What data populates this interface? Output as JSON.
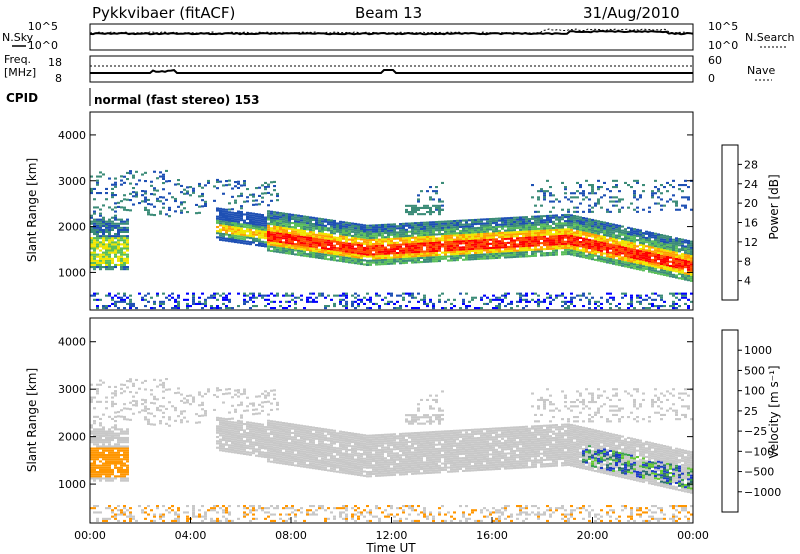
{
  "header": {
    "station": "Pykkvibaer (fitACF)",
    "beam": "Beam 13",
    "date": "31/Aug/2010"
  },
  "noise_panel": {
    "left_label": "N.Sky",
    "right_label": "N.Search",
    "left_ticks": [
      "10^5",
      "10^0"
    ],
    "right_ticks": [
      "10^5",
      "10^0"
    ]
  },
  "freq_panel": {
    "left_label": "Freq.",
    "left_unit": "[MHz]",
    "right_label": "Nave",
    "left_ticks": [
      "18",
      "8"
    ],
    "right_ticks": [
      "60",
      "0"
    ]
  },
  "cpid": {
    "label": "CPID",
    "text": "normal (fast stereo) 153"
  },
  "colors": {
    "scale": [
      "#0000ff",
      "#1e50b4",
      "#3c8c78",
      "#5abe5a",
      "#f0e600",
      "#ffa000",
      "#ff5000",
      "#ff0000"
    ],
    "velocity_scale": [
      "#1e3cc8",
      "#2d6e6e",
      "#3ca050",
      "#64c832",
      "#c8c8c8",
      "#c8c8c8",
      "#ff9600",
      "#ff6400",
      "#ff0000"
    ],
    "ground_scatter": "#c8c8c8"
  },
  "chart_data": [
    {
      "type": "heatmap",
      "title": "",
      "ylabel": "Slant Range [km]",
      "ylim": [
        180,
        4500
      ],
      "yticks": [
        "1000",
        "2000",
        "3000",
        "4000"
      ],
      "xlim": [
        "00:00",
        "24:00"
      ],
      "colorbar": {
        "label": "Power [dB]",
        "ticks": [
          "4",
          "8",
          "12",
          "16",
          "20",
          "24",
          "28"
        ],
        "range": [
          0,
          32
        ]
      },
      "features": [
        {
          "region": "main band",
          "time": "05:00-24:00",
          "range_km": [
            1000,
            2000
          ],
          "power_db": "16-30"
        },
        {
          "region": "upper scatter",
          "time": "00:00-08:00 and 13:00-24:00",
          "range_km": [
            2200,
            3250
          ],
          "power_db": "4-12"
        },
        {
          "region": "early band",
          "time": "00:00-01:30",
          "range_km": [
            1050,
            2100
          ],
          "power_db": "8-16"
        },
        {
          "region": "near range",
          "time": "00:00-24:00",
          "range_km": [
            180,
            500
          ],
          "power_db": "2-8"
        }
      ]
    },
    {
      "type": "heatmap",
      "title": "",
      "ylabel": "Slant Range [km]",
      "xlabel": "Time UT",
      "ylim": [
        180,
        4500
      ],
      "yticks": [
        "1000",
        "2000",
        "3000",
        "4000"
      ],
      "xticks": [
        "00:00",
        "04:00",
        "08:00",
        "12:00",
        "16:00",
        "20:00",
        "00:00"
      ],
      "colorbar": {
        "label": "Velocity [m s⁻¹]",
        "ticks": [
          "1000",
          "500",
          "100",
          "25",
          "−25",
          "−100",
          "−500",
          "−1000"
        ]
      },
      "features": [
        {
          "region": "main band (ground scatter)",
          "time": "05:00-24:00",
          "range_km": [
            1000,
            2000
          ],
          "velocity": "grey"
        },
        {
          "region": "early band",
          "time": "00:00-01:30",
          "range_km": [
            1050,
            1700
          ],
          "velocity_ms": "-100 to -500"
        },
        {
          "region": "late echoes",
          "time": "19:30-24:00",
          "range_km": [
            1000,
            1700
          ],
          "velocity_ms": "100 to 1000"
        }
      ]
    }
  ]
}
